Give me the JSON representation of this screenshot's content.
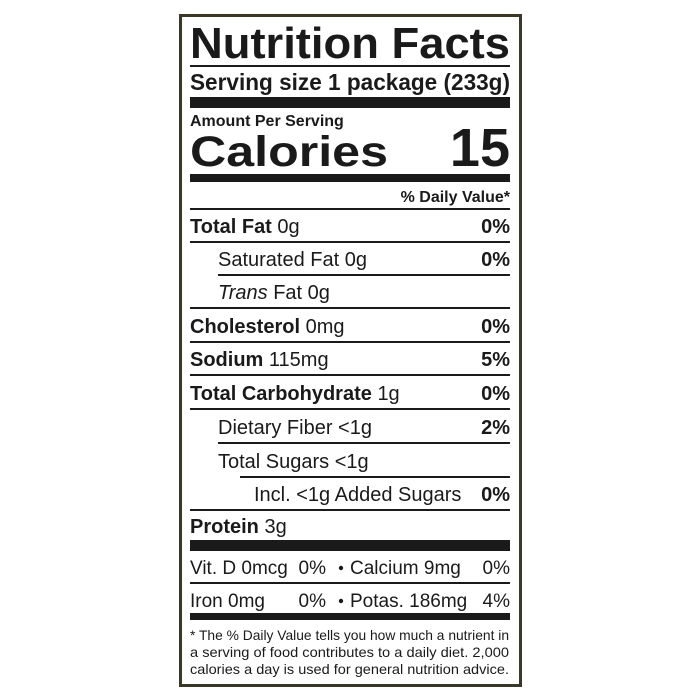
{
  "title": "Nutrition Facts",
  "serving": {
    "label": "Serving size",
    "value": "1 package (233g)"
  },
  "amount_per_serving": "Amount Per Serving",
  "calories": {
    "label": "Calories",
    "value": 15
  },
  "daily_value_header": "% Daily Value*",
  "nutrients": [
    {
      "name": "Total Fat",
      "amount": "0g",
      "dv": "0%"
    },
    {
      "name": "Saturated Fat",
      "amount": "0g",
      "dv": "0%"
    },
    {
      "prefix": "Trans",
      "name": "Fat",
      "amount": "0g"
    },
    {
      "name": "Cholesterol",
      "amount": "0mg",
      "dv": "0%"
    },
    {
      "name": "Sodium",
      "amount": "115mg",
      "dv": "5%"
    },
    {
      "name": "Total Carbohydrate",
      "amount": "1g",
      "dv": "0%"
    },
    {
      "name": "Dietary Fiber",
      "amount": "<1g",
      "dv": "2%"
    },
    {
      "name": "Total Sugars",
      "amount": "<1g"
    },
    {
      "name": "Incl. <1g Added Sugars",
      "dv": "0%"
    },
    {
      "name": "Protein",
      "amount": "3g"
    }
  ],
  "vitamins": [
    [
      {
        "name": "Vit. D",
        "amount": "0mcg",
        "dv": "0%"
      },
      {
        "name": "Calcium",
        "amount": "9mg",
        "dv": "0%"
      }
    ],
    [
      {
        "name": "Iron",
        "amount": "0mg",
        "dv": "0%"
      },
      {
        "name": "Potas.",
        "amount": "186mg",
        "dv": "4%"
      }
    ]
  ],
  "footnote": [
    "* The % Daily Value tells you how much a nutrient in",
    "a serving of food contributes to a daily diet. 2,000",
    "calories a day is used for general nutrition advice."
  ]
}
